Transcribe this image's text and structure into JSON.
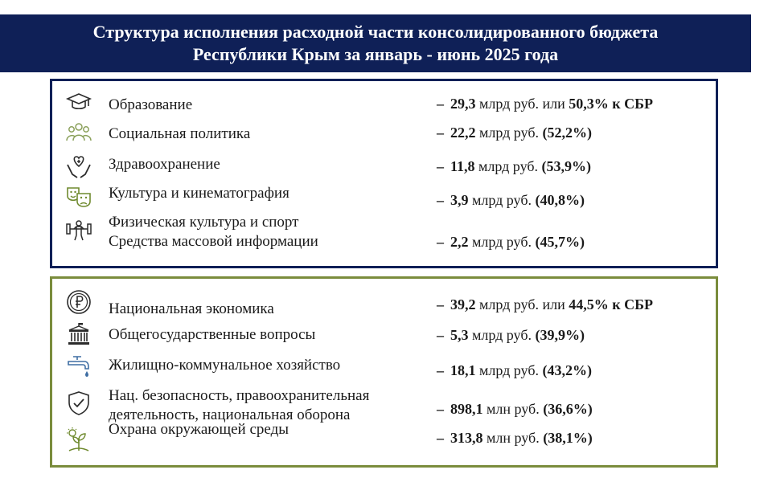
{
  "header": {
    "line1": "Структура исполнения расходной части консолидированного бюджета",
    "line2": "Республики Крым за январь - июнь 2025 года"
  },
  "social_block": {
    "items": [
      {
        "icon": "graduation-cap-icon",
        "label": "Образование",
        "amount": "29,3",
        "unit": "млрд руб. или",
        "pct": "50,3% к СБР"
      },
      {
        "icon": "people-group-icon",
        "label": "Социальная политика",
        "amount": "22,2",
        "unit": "млрд руб.",
        "pct": "(52,2%)"
      },
      {
        "icon": "heart-hands-icon",
        "label": "Здравоохранение",
        "amount": "11,8",
        "unit": "млрд руб.",
        "pct": "(53,9%)"
      },
      {
        "icon": "theater-masks-icon",
        "label": "Культура и кинематография",
        "amount": "3,9",
        "unit": "млрд руб.",
        "pct": "(40,8%)"
      },
      {
        "icon": "weightlifting-icon",
        "label": "Физическая культура и спорт",
        "label2": "Средства массовой информации",
        "amount": "2,2",
        "unit": "млрд руб.",
        "pct": "(45,7%)"
      }
    ]
  },
  "economy_block": {
    "items": [
      {
        "icon": "ruble-coin-icon",
        "label": "Национальная экономика",
        "amount": "39,2",
        "unit": "млрд руб. или",
        "pct": "44,5% к СБР"
      },
      {
        "icon": "government-building-icon",
        "label": "Общегосударственные вопросы",
        "amount": "5,3",
        "unit": "млрд руб.",
        "pct": "(39,9%)"
      },
      {
        "icon": "water-tap-icon",
        "label": "Жилищно-коммунальное хозяйство",
        "amount": "18,1",
        "unit": "млрд руб.",
        "pct": "(43,2%)"
      },
      {
        "icon": "shield-check-icon",
        "label": "Нац. безопасность, правоохранительная",
        "label2": "деятельность,  национальная оборона",
        "amount": "898,1",
        "unit": "млн руб.",
        "pct": "(36,6%)"
      },
      {
        "icon": "eco-plant-icon",
        "label": "Охрана окружающей среды",
        "amount": "313,8",
        "unit": "млн руб.",
        "pct": "(38,1%)"
      }
    ]
  }
}
